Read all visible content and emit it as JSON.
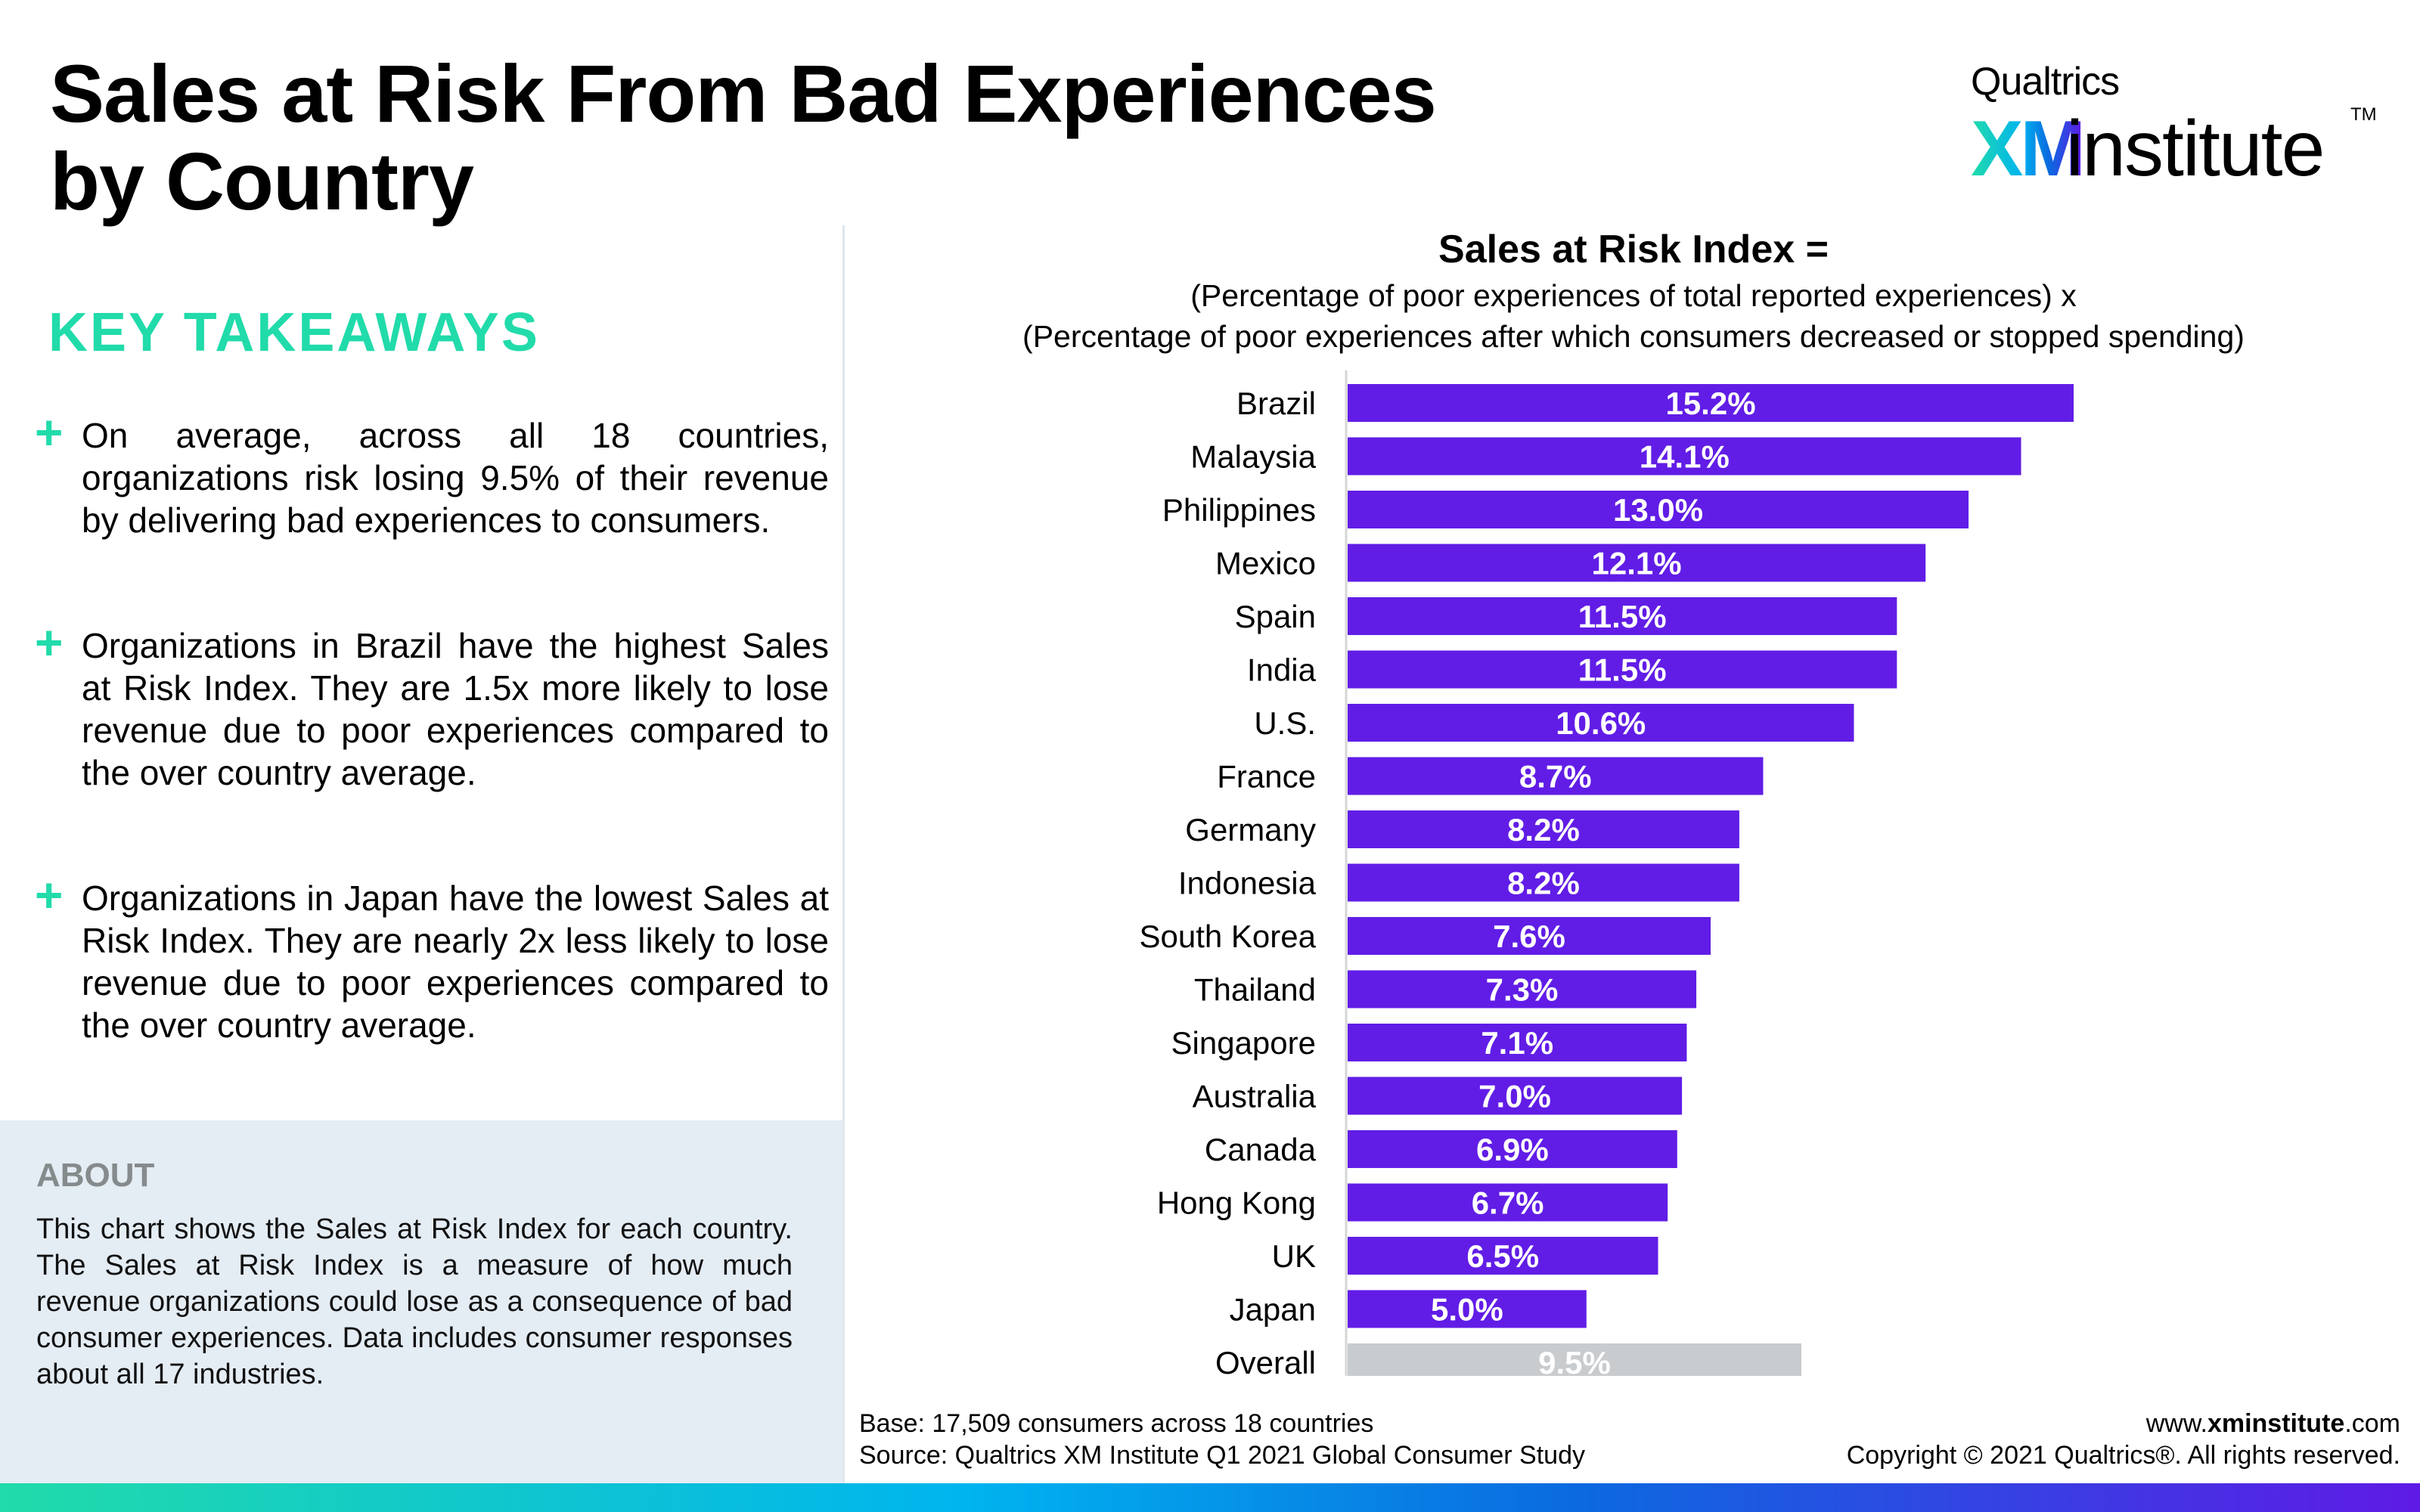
{
  "header": {
    "title_line1": "Sales at Risk From Bad Experiences",
    "title_line2": "by Country",
    "logo": {
      "top": "Qualtrics",
      "xm": "XM",
      "institute": "institute",
      "tm": "TM"
    }
  },
  "takeaways": {
    "heading": "KEY TAKEAWAYS",
    "icon": "plus-icon",
    "items": [
      "On average,  across all 18 countries, organizations risk losing 9.5% of their revenue by delivering bad experiences to consumers.",
      "Organizations in Brazil have the highest Sales at Risk Index. They are 1.5x more likely to lose revenue due to poor experiences compared to the over country average.",
      "Organizations in Japan  have the lowest Sales at Risk Index. They are nearly 2x less likely to lose revenue due to poor experiences compared to the over country average."
    ]
  },
  "about": {
    "heading": "ABOUT",
    "text": "This chart shows the Sales at Risk Index for each country. The Sales at Risk Index is a measure of how much revenue organizations could lose as a consequence of bad consumer experiences. Data includes consumer responses about all 17 industries."
  },
  "chart_data": {
    "type": "bar",
    "orientation": "horizontal",
    "title": "Sales at Risk Index =",
    "subtitle_line1": "(Percentage of poor experiences of total reported experiences) x",
    "subtitle_line2": "(Percentage of poor experiences after which consumers decreased or stopped spending)",
    "xlabel": "",
    "ylabel": "",
    "xlim": [
      0,
      15.2
    ],
    "grid": false,
    "legend": "none",
    "value_suffix": "%",
    "categories": [
      "Brazil",
      "Malaysia",
      "Philippines",
      "Mexico",
      "Spain",
      "India",
      "U.S.",
      "France",
      "Germany",
      "Indonesia",
      "South Korea",
      "Thailand",
      "Singapore",
      "Australia",
      "Canada",
      "Hong Kong",
      "UK",
      "Japan",
      "Overall"
    ],
    "values": [
      15.2,
      14.1,
      13.0,
      12.1,
      11.5,
      11.5,
      10.6,
      8.7,
      8.2,
      8.2,
      7.6,
      7.3,
      7.1,
      7.0,
      6.9,
      6.7,
      6.5,
      5.0,
      9.5
    ],
    "labels": [
      "15.2%",
      "14.1%",
      "13.0%",
      "12.1%",
      "11.5%",
      "11.5%",
      "10.6%",
      "8.7%",
      "8.2%",
      "8.2%",
      "7.6%",
      "7.3%",
      "7.1%",
      "7.0%",
      "6.9%",
      "6.7%",
      "6.5%",
      "5.0%",
      "9.5%"
    ],
    "colors": {
      "country": "#611de6",
      "overall": "#c9cccf",
      "axis": "#d6d6d6",
      "label_text": "#ffffff"
    }
  },
  "footer": {
    "base": "Base: 17,509 consumers across 18 countries",
    "source": "Source: Qualtrics XM Institute Q1 2021 Global Consumer Study",
    "url_prefix": "www.",
    "url_bold": "xminstitute",
    "url_suffix": ".com",
    "copyright": "Copyright © 2021 Qualtrics®. All rights reserved."
  },
  "colors": {
    "accent_green": "#21dbaa",
    "about_bg": "#e4ecf4",
    "bar_purple": "#611de6"
  }
}
